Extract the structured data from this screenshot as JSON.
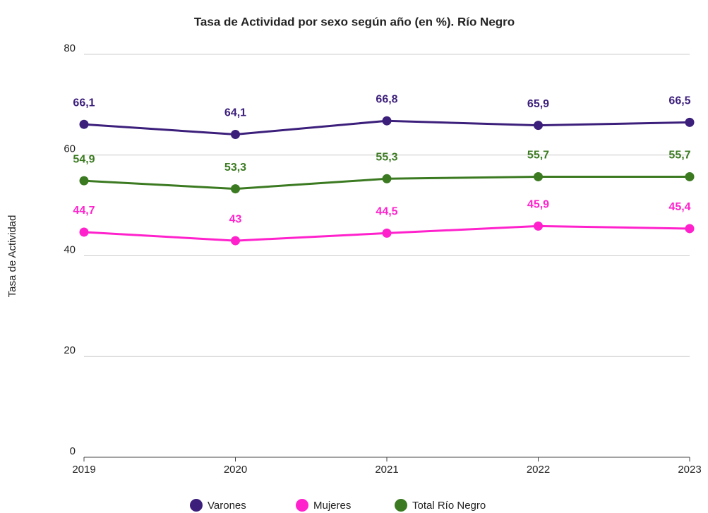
{
  "chart_data": {
    "type": "line",
    "title": "Tasa de Actividad por sexo según año (en %). Río Negro",
    "y_label": "Tasa de Actividad",
    "categories": [
      "2019",
      "2020",
      "2021",
      "2022",
      "2023"
    ],
    "series": [
      {
        "name": "Varones",
        "color": "#3c1f7b",
        "values": [
          66.1,
          64.1,
          66.8,
          65.9,
          66.5
        ],
        "value_labels": [
          "66,1",
          "64,1",
          "66,8",
          "65,9",
          "66,5"
        ]
      },
      {
        "name": "Mujeres",
        "color": "#ff22cc",
        "values": [
          44.7,
          43,
          44.5,
          45.9,
          45.4
        ],
        "value_labels": [
          "44,7",
          "43",
          "44,5",
          "45,9",
          "45,4"
        ]
      },
      {
        "name": "Total Río Negro",
        "color": "#3b7a21",
        "values": [
          54.9,
          53.3,
          55.3,
          55.7,
          55.7
        ],
        "value_labels": [
          "54,9",
          "53,3",
          "55,3",
          "55,7",
          "55,7"
        ]
      }
    ],
    "ylim": [
      0,
      80
    ],
    "yticks": [
      0,
      20,
      40,
      60,
      80
    ],
    "grid": true,
    "legend": "bottom"
  }
}
